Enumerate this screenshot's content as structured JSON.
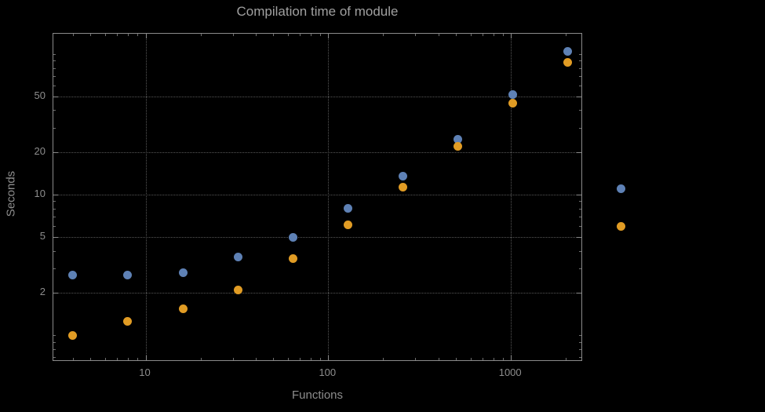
{
  "figure": {
    "background": "#000000",
    "frame_color": "#8a8a8a",
    "grid_color": "#575757",
    "text_color": "#9b9b9b"
  },
  "chart_data": {
    "type": "scatter",
    "title": "Compilation time of module",
    "xlabel": "Functions",
    "ylabel": "Seconds",
    "x_scale": "log",
    "y_scale": "log",
    "xlim": [
      3.13,
      2430
    ],
    "ylim": [
      0.665,
      140
    ],
    "x_ticks": [
      10,
      100,
      1000
    ],
    "y_ticks": [
      2,
      5,
      10,
      20,
      50
    ],
    "grid": "dotted",
    "legend_position": "right-outside",
    "x": [
      4,
      8,
      16,
      32,
      64,
      128,
      256,
      512,
      1024,
      2048
    ],
    "series": [
      {
        "name": "blue",
        "color": "#5e81b5",
        "values": [
          2.7,
          2.7,
          2.8,
          3.6,
          5.0,
          8.0,
          13.5,
          25,
          52,
          105
        ]
      },
      {
        "name": "orange",
        "color": "#e19c24",
        "values": [
          1.0,
          1.25,
          1.55,
          2.1,
          3.5,
          6.1,
          11.4,
          22,
          45,
          88
        ]
      }
    ]
  }
}
